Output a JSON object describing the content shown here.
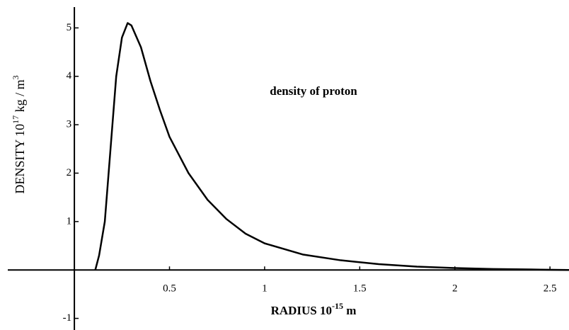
{
  "chart_data": {
    "type": "line",
    "annotation": "density of proton",
    "xlabel_parts": [
      "RADIUS  10",
      "-15",
      "  m"
    ],
    "ylabel_parts": [
      "DENSITY  10",
      "17",
      "  kg / m",
      "3"
    ],
    "series": [
      {
        "color": "#000000",
        "x": [
          0.11,
          0.13,
          0.16,
          0.19,
          0.22,
          0.25,
          0.28,
          0.3,
          0.35,
          0.4,
          0.45,
          0.5,
          0.6,
          0.7,
          0.8,
          0.9,
          1.0,
          1.2,
          1.4,
          1.6,
          1.8,
          2.0,
          2.2,
          2.4,
          2.6
        ],
        "values": [
          0,
          0.3,
          1.0,
          2.5,
          4.0,
          4.8,
          5.1,
          5.05,
          4.6,
          3.9,
          3.3,
          2.75,
          2.0,
          1.45,
          1.05,
          0.75,
          0.55,
          0.32,
          0.2,
          0.12,
          0.07,
          0.04,
          0.02,
          0.01,
          0.0
        ]
      }
    ],
    "xlim": [
      -0.35,
      2.6
    ],
    "ylim": [
      -1.24,
      5.43
    ],
    "xticks": [
      0.5,
      1,
      1.5,
      2,
      2.5
    ],
    "yticks": [
      -1,
      1,
      2,
      3,
      4,
      5
    ],
    "grid": false
  }
}
